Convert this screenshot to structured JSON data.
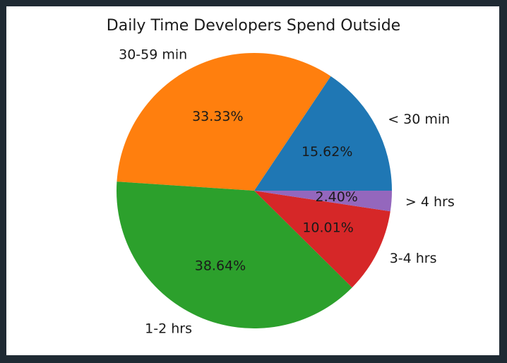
{
  "chart_data": {
    "type": "pie",
    "title": "Daily Time Developers Spend Outside",
    "categories": [
      "< 30 min",
      "30-59 min",
      "1-2 hrs",
      "3-4 hrs",
      "> 4 hrs"
    ],
    "values": [
      15.62,
      33.33,
      38.64,
      10.01,
      2.4
    ],
    "value_labels": [
      "15.62%",
      "33.33%",
      "38.64%",
      "10.01%",
      "2.40%"
    ],
    "colors": [
      "#1f77b4",
      "#ff7f0e",
      "#2ca02c",
      "#d62728",
      "#9467bd"
    ],
    "start_angle_deg": 0,
    "direction": "counterclockwise",
    "legend": "none"
  }
}
